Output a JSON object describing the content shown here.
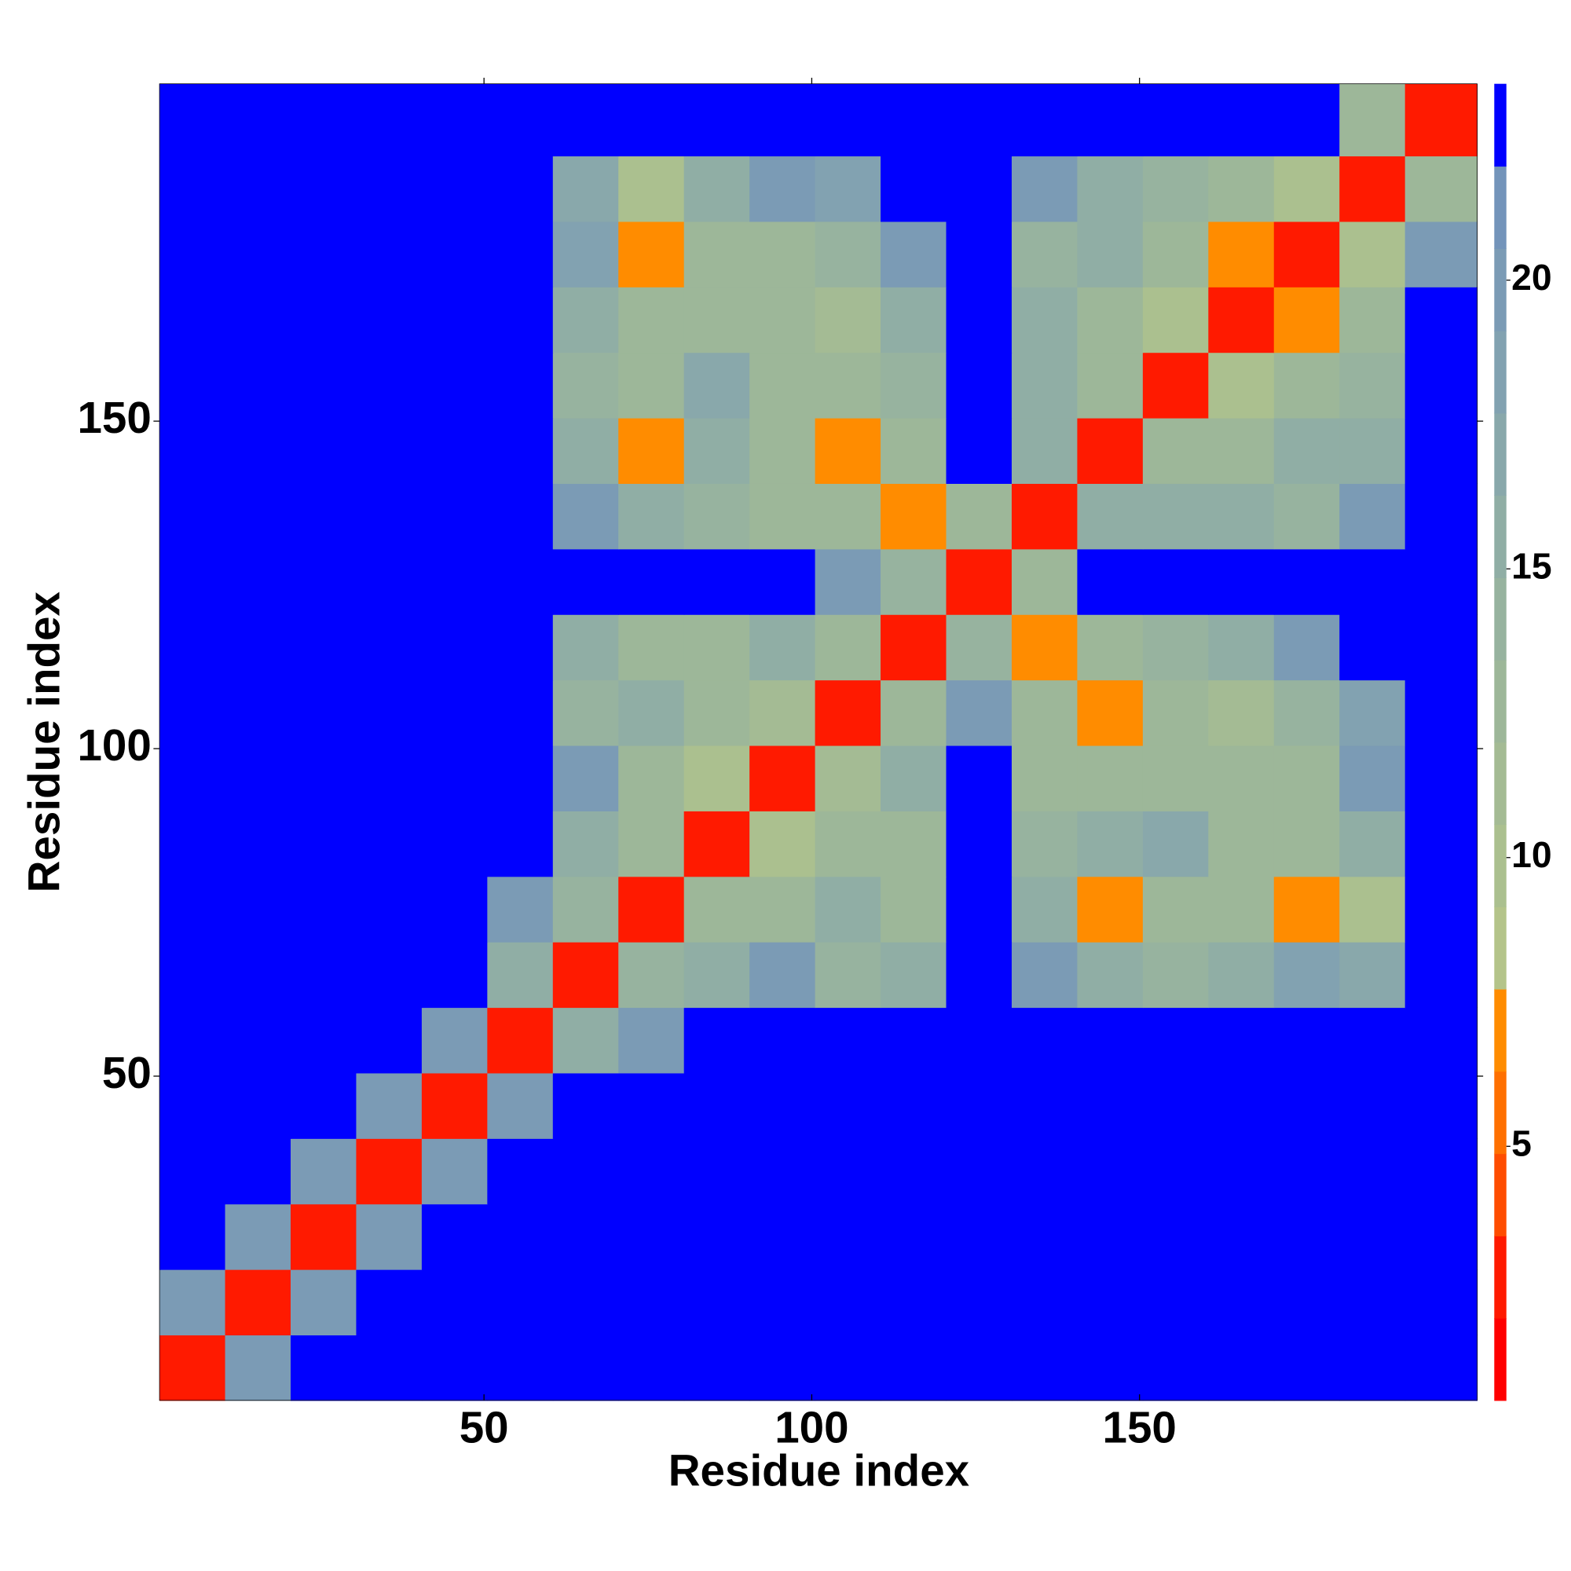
{
  "chart_data": {
    "type": "heatmap",
    "x_label": "Residue index",
    "y_label": "Residue index",
    "xbins": [
      0.5,
      10.5,
      20.5,
      30.5,
      40.5,
      50.5,
      60.5,
      70.5,
      80.5,
      90.5,
      100.5,
      110.5,
      120.5,
      130.5,
      140.5,
      150.5,
      160.5,
      170.5,
      180.5,
      190.5,
      201.5
    ],
    "ybins": [
      0.5,
      10.5,
      20.5,
      30.5,
      40.5,
      50.5,
      60.5,
      70.5,
      80.5,
      90.5,
      100.5,
      110.5,
      120.5,
      130.5,
      140.5,
      150.5,
      160.5,
      170.5,
      180.5,
      190.5,
      201.5
    ],
    "xlim": [
      0.5,
      201.5
    ],
    "ylim": [
      0.5,
      201.5
    ],
    "xticks": [
      50,
      100,
      150
    ],
    "yticks": [
      50,
      100,
      150
    ],
    "values": [
      [
        3,
        20,
        23,
        23,
        23,
        23,
        23,
        23,
        23,
        23,
        23,
        23,
        23,
        23,
        23,
        23,
        23,
        23,
        23,
        23
      ],
      [
        20,
        3,
        20,
        23,
        23,
        23,
        23,
        23,
        23,
        23,
        23,
        23,
        23,
        23,
        23,
        23,
        23,
        23,
        23,
        23
      ],
      [
        23,
        20,
        3,
        20,
        23,
        23,
        23,
        23,
        23,
        23,
        23,
        23,
        23,
        23,
        23,
        23,
        23,
        23,
        23,
        23
      ],
      [
        23,
        23,
        20,
        3,
        20,
        23,
        23,
        23,
        23,
        23,
        23,
        23,
        23,
        23,
        23,
        23,
        23,
        23,
        23,
        23
      ],
      [
        23,
        23,
        23,
        20,
        3,
        20,
        23,
        23,
        23,
        23,
        23,
        23,
        23,
        23,
        23,
        23,
        23,
        23,
        23,
        23
      ],
      [
        23,
        23,
        23,
        23,
        20,
        3,
        16,
        20,
        23,
        23,
        23,
        23,
        23,
        23,
        23,
        23,
        23,
        23,
        23,
        23
      ],
      [
        23,
        23,
        23,
        23,
        23,
        16,
        3,
        14,
        16,
        20,
        14,
        16,
        23,
        20,
        15,
        14,
        16,
        18,
        17,
        23
      ],
      [
        23,
        23,
        23,
        23,
        23,
        20,
        14,
        3,
        12,
        13,
        16,
        13,
        23,
        16,
        7,
        12,
        13,
        7,
        10,
        22
      ],
      [
        23,
        23,
        23,
        23,
        23,
        23,
        16,
        12,
        3,
        10,
        12,
        13,
        23,
        14,
        15,
        17,
        12,
        13,
        16,
        23
      ],
      [
        23,
        23,
        23,
        23,
        23,
        23,
        20,
        13,
        10,
        3,
        11,
        15,
        23,
        12,
        12,
        13,
        12,
        13,
        20,
        23
      ],
      [
        23,
        23,
        23,
        23,
        23,
        23,
        14,
        16,
        12,
        11,
        3,
        12,
        20,
        12,
        7,
        12,
        11,
        14,
        18,
        23
      ],
      [
        23,
        23,
        23,
        23,
        23,
        23,
        16,
        13,
        13,
        15,
        12,
        3,
        14,
        7,
        13,
        14,
        15,
        20,
        22,
        23
      ],
      [
        23,
        23,
        23,
        23,
        23,
        23,
        23,
        23,
        23,
        23,
        20,
        14,
        3,
        12,
        23,
        23,
        23,
        23,
        23,
        23
      ],
      [
        23,
        23,
        23,
        23,
        23,
        23,
        20,
        16,
        14,
        12,
        12,
        7,
        12,
        3,
        15,
        16,
        16,
        14,
        20,
        23
      ],
      [
        23,
        23,
        23,
        23,
        23,
        23,
        15,
        7,
        15,
        12,
        7,
        13,
        23,
        15,
        3,
        12,
        12,
        16,
        15,
        23
      ],
      [
        23,
        23,
        23,
        23,
        23,
        23,
        14,
        12,
        17,
        13,
        12,
        14,
        23,
        16,
        12,
        3,
        10,
        12,
        14,
        23
      ],
      [
        23,
        23,
        23,
        23,
        23,
        23,
        16,
        13,
        12,
        12,
        11,
        15,
        23,
        16,
        12,
        10,
        3,
        7,
        13,
        23
      ],
      [
        23,
        23,
        23,
        23,
        23,
        23,
        18,
        7,
        13,
        13,
        14,
        20,
        23,
        14,
        16,
        12,
        7,
        3,
        10,
        20
      ],
      [
        23,
        23,
        23,
        23,
        23,
        23,
        17,
        10,
        16,
        20,
        18,
        22,
        23,
        20,
        15,
        14,
        13,
        10,
        3,
        12
      ],
      [
        23,
        23,
        23,
        23,
        23,
        23,
        23,
        22,
        23,
        23,
        23,
        23,
        23,
        23,
        23,
        23,
        23,
        23,
        12,
        3
      ]
    ],
    "colorbar": {
      "lim": [
        0.6,
        23.4
      ],
      "ticks": [
        5,
        10,
        15,
        20
      ],
      "colors": [
        "#ff0000",
        "#ff1a00",
        "#ff4d00",
        "#ff7000",
        "#ff8c00",
        "#b4c48a",
        "#abc08f",
        "#a4bb94",
        "#9db799",
        "#97b39f",
        "#90aea5",
        "#89a8ab",
        "#82a2b1",
        "#7b9bb5",
        "#7394ba",
        "#0000ff"
      ]
    }
  }
}
